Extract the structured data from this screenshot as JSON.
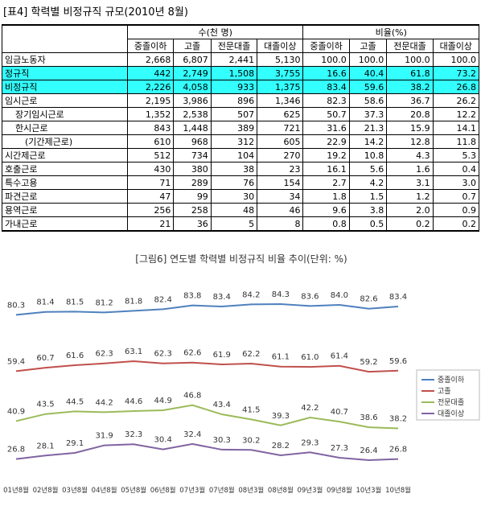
{
  "table": {
    "title": "[표4] 학력별 비정규직 규모(2010년 8월)",
    "group_headers": [
      "수(천 명)",
      "비율(%)"
    ],
    "sub_headers": [
      "중졸이하",
      "고졸",
      "전문대졸",
      "대졸이상",
      "중졸이하",
      "고졸",
      "전문대졸",
      "대졸이상"
    ],
    "rows": [
      {
        "label": "임금노동자",
        "cells": [
          "2,668",
          "6,807",
          "2,441",
          "5,130",
          "100.0",
          "100.0",
          "100.0",
          "100.0"
        ]
      },
      {
        "label": "정규직",
        "cells": [
          "442",
          "2,749",
          "1,508",
          "3,755",
          "16.6",
          "40.4",
          "61.8",
          "73.2"
        ]
      },
      {
        "label": "비정규직",
        "cells": [
          "2,226",
          "4,058",
          "933",
          "1,375",
          "83.4",
          "59.6",
          "38.2",
          "26.8"
        ]
      },
      {
        "label": "임시근로",
        "cells": [
          "2,195",
          "3,986",
          "896",
          "1,346",
          "82.3",
          "58.6",
          "36.7",
          "26.2"
        ]
      },
      {
        "label": "장기임시근로",
        "cells": [
          "1,352",
          "2,538",
          "507",
          "625",
          "50.7",
          "37.3",
          "20.8",
          "12.2"
        ]
      },
      {
        "label": "한시근로",
        "cells": [
          "843",
          "1,448",
          "389",
          "721",
          "31.6",
          "21.3",
          "15.9",
          "14.1"
        ]
      },
      {
        "label": "(기간제근로)",
        "cells": [
          "610",
          "968",
          "312",
          "605",
          "22.9",
          "14.2",
          "12.8",
          "11.8"
        ]
      },
      {
        "label": "시간제근로",
        "cells": [
          "512",
          "734",
          "104",
          "270",
          "19.2",
          "10.8",
          "4.3",
          "5.3"
        ]
      },
      {
        "label": "호출근로",
        "cells": [
          "430",
          "380",
          "38",
          "23",
          "16.1",
          "5.6",
          "1.6",
          "0.4"
        ]
      },
      {
        "label": "특수고용",
        "cells": [
          "71",
          "289",
          "76",
          "154",
          "2.7",
          "4.2",
          "3.1",
          "3.0"
        ]
      },
      {
        "label": "파견근로",
        "cells": [
          "47",
          "99",
          "30",
          "34",
          "1.8",
          "1.5",
          "1.2",
          "0.7"
        ]
      },
      {
        "label": "용역근로",
        "cells": [
          "256",
          "258",
          "48",
          "46",
          "9.6",
          "3.8",
          "2.0",
          "0.9"
        ]
      },
      {
        "label": "가내근로",
        "cells": [
          "21",
          "36",
          "5",
          "8",
          "0.8",
          "0.5",
          "0.2",
          "0.2"
        ]
      }
    ]
  },
  "chart_data": {
    "type": "line",
    "title": "[그림6] 연도별 학력별 비정규직 비율 추이(단위: %)",
    "categories": [
      "01년8월",
      "02년8월",
      "03년8월",
      "04년8월",
      "05년8월",
      "06년8월",
      "07년3월",
      "07년8월",
      "08년3월",
      "08년8월",
      "09년3월",
      "09년8월",
      "10년3월",
      "10년8월"
    ],
    "series": [
      {
        "name": "중졸이하",
        "color": "#4f81bd",
        "values": [
          80.3,
          81.4,
          81.5,
          81.2,
          81.8,
          82.4,
          83.8,
          83.4,
          84.2,
          84.3,
          83.6,
          84.0,
          82.6,
          83.4
        ],
        "value_labels": [
          "80.3",
          "81.4",
          "81.5",
          "81.2",
          "81.8",
          "82.4",
          "83.8",
          "83.4",
          "84.2",
          "84.3",
          "83.6",
          "84.0",
          "82.6",
          "83.4"
        ]
      },
      {
        "name": "고졸",
        "color": "#c0504d",
        "values": [
          59.4,
          60.7,
          61.6,
          62.3,
          63.1,
          62.3,
          62.6,
          61.9,
          62.2,
          61.1,
          61.0,
          61.4,
          59.2,
          59.6
        ],
        "value_labels": [
          "59.4",
          "60.7",
          "61.6",
          "62.3",
          "63.1",
          "62.3",
          "62.6",
          "61.9",
          "62.2",
          "61.1",
          "61.0",
          "61.4",
          "59.2",
          "59.6"
        ]
      },
      {
        "name": "전문대졸",
        "color": "#9bbb59",
        "values": [
          40.9,
          43.5,
          44.5,
          44.2,
          44.6,
          44.9,
          46.8,
          43.4,
          41.5,
          39.3,
          42.2,
          40.7,
          38.6,
          38.2
        ],
        "value_labels": [
          "40.9",
          "43.5",
          "44.5",
          "44.2",
          "44.6",
          "44.9",
          "46.8",
          "43.4",
          "41.5",
          "39.3",
          "42.2",
          "40.7",
          "38.6",
          "38.2"
        ]
      },
      {
        "name": "대졸이상",
        "color": "#8064a2",
        "values": [
          26.8,
          28.1,
          29.1,
          31.9,
          32.3,
          30.4,
          32.4,
          30.3,
          30.2,
          28.2,
          29.3,
          27.3,
          26.4,
          26.8
        ],
        "value_labels": [
          "26.8",
          "28.1",
          "29.1",
          "31.9",
          "32.3",
          "30.4",
          "32.4",
          "30.3",
          "30.2",
          "28.2",
          "29.3",
          "27.3",
          "26.4",
          "26.8"
        ]
      }
    ]
  }
}
